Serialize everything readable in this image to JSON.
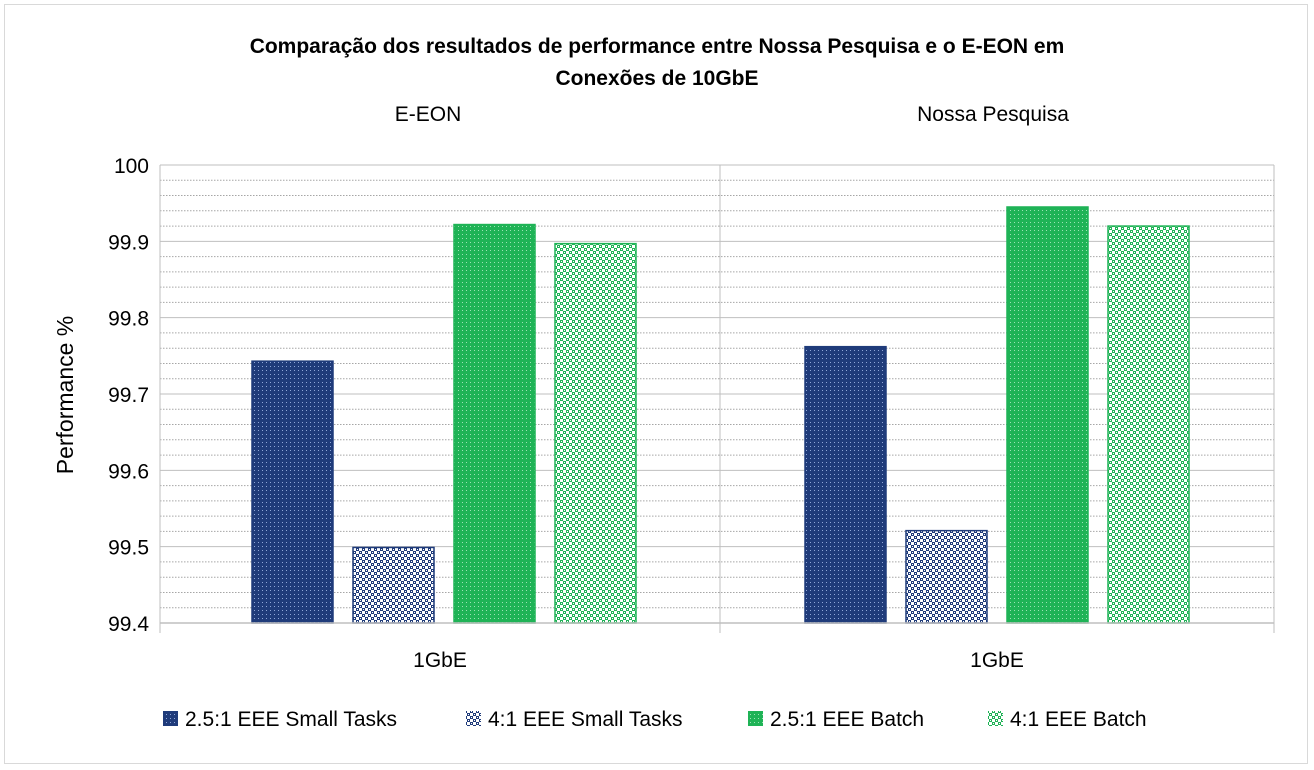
{
  "chart_data": {
    "type": "bar",
    "title": "Comparação dos resultados de performance entre Nossa Pesquisa e o E-EON em Conexões de 10GbE",
    "title_lines": [
      "Comparação dos resultados de performance entre Nossa Pesquisa e o E-EON em",
      "Conexões de 10GbE"
    ],
    "ylabel": "Performance %",
    "xlabel": "",
    "ylim": [
      99.4,
      100
    ],
    "yticks": [
      "99.4",
      "99.5",
      "99.6",
      "99.7",
      "99.8",
      "99.9",
      "100"
    ],
    "grid": "on",
    "legend_position": "bottom",
    "panels": [
      {
        "label": "E-EON",
        "category": "1GbE",
        "values": [
          99.743,
          99.499,
          99.922,
          99.897
        ]
      },
      {
        "label": "Nossa Pesquisa",
        "category": "1GbE",
        "values": [
          99.762,
          99.521,
          99.945,
          99.92
        ]
      }
    ],
    "series": [
      {
        "name": "2.5:1 EEE Small Tasks",
        "color": "#1f3b7a",
        "pattern": "dots-dark"
      },
      {
        "name": "4:1 EEE Small Tasks",
        "color": "#1f3b7a",
        "pattern": "checker-dark"
      },
      {
        "name": "2.5:1 EEE Batch",
        "color": "#1fb356",
        "pattern": "dots-green"
      },
      {
        "name": "4:1 EEE Batch",
        "color": "#1fb356",
        "pattern": "checker-green"
      }
    ]
  }
}
